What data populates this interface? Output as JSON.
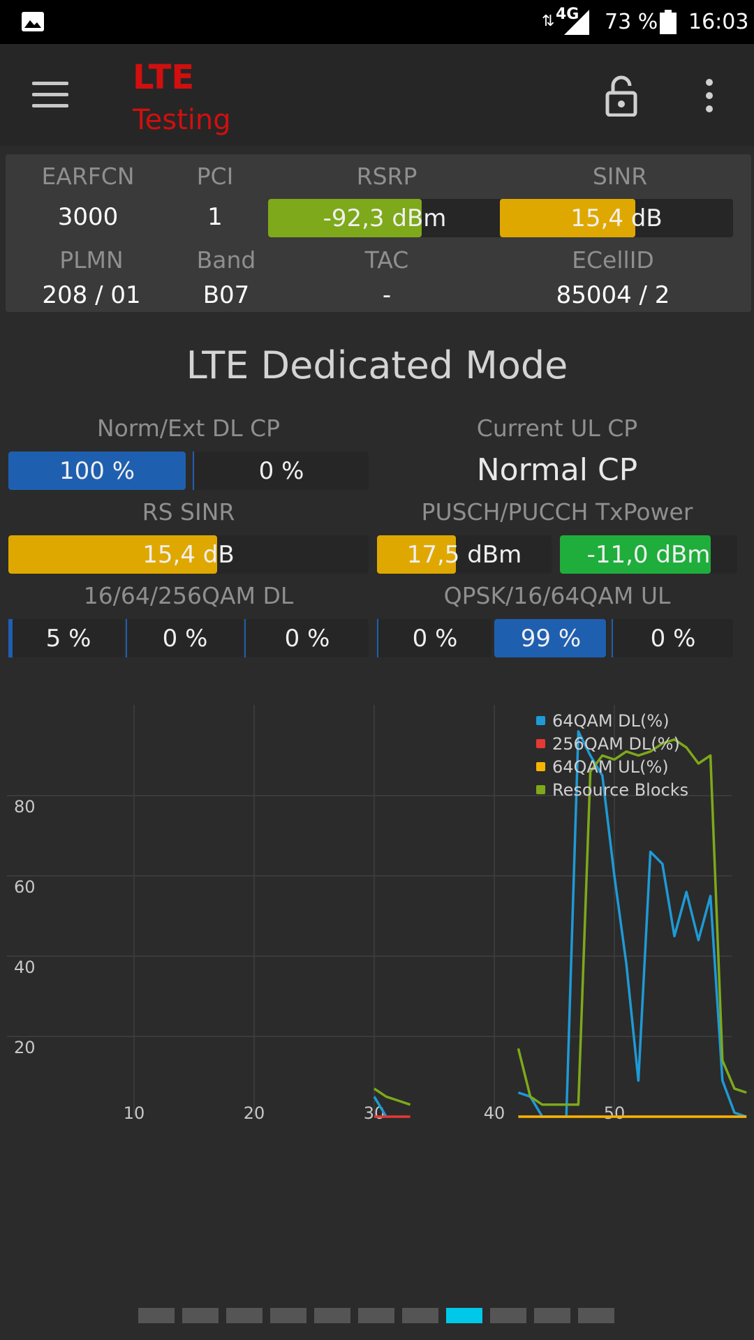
{
  "status_bar": {
    "network": "4G",
    "battery": "73 %",
    "time": "16:03",
    "icons": [
      "image-icon",
      "data-arrows-icon",
      "signal-icon",
      "battery-icon"
    ]
  },
  "app_bar": {
    "title_line1": "LTE",
    "title_line2": "Testing",
    "icons": [
      "menu-icon",
      "lock-icon",
      "more-vert-icon"
    ]
  },
  "cell_info": {
    "earfcn_label": "EARFCN",
    "earfcn": "3000",
    "pci_label": "PCI",
    "pci": "1",
    "rsrp_label": "RSRP",
    "rsrp": "-92,3 dBm",
    "rsrp_fill": 0.66,
    "sinr_label": "SINR",
    "sinr": "15,4 dB",
    "sinr_fill": 0.58,
    "plmn_label": "PLMN",
    "plmn": "208 / 01",
    "band_label": "Band",
    "band": "B07",
    "tac_label": "TAC",
    "tac": "-",
    "ecellid_label": "ECellID",
    "ecellid": "85004 / 2"
  },
  "dedicated": {
    "title": "LTE Dedicated Mode",
    "dl_cp_label": "Norm/Ext DL CP",
    "dl_cp_norm": "100 %",
    "dl_cp_ext": "0 %",
    "ul_cp_label": "Current UL CP",
    "ul_cp_value": "Normal CP",
    "rs_sinr_label": "RS SINR",
    "rs_sinr": "15,4 dB",
    "rs_sinr_fill": 0.58,
    "txpower_label": "PUSCH/PUCCH TxPower",
    "pusch_power": "17,5 dBm",
    "pusch_fill": 0.45,
    "pucch_power": "-11,0 dBm",
    "pucch_fill": 0.85,
    "qam_dl_label": "16/64/256QAM DL",
    "qam_dl": [
      "5 %",
      "0 %",
      "0 %"
    ],
    "qam_ul_label": "QPSK/16/64QAM UL",
    "qam_ul": [
      "0 %",
      "99 %",
      "0 %"
    ]
  },
  "colors": {
    "blue": "#1f5fb0",
    "green": "#7ea91a",
    "amber": "#dfa800",
    "bright_green": "#1fad3c",
    "title_red": "#d10f0f",
    "pager_active": "#00c8e8"
  },
  "chart_data": {
    "type": "line",
    "xlim": [
      0,
      61
    ],
    "ylim": [
      0,
      100
    ],
    "x_ticks": [
      "10",
      "20",
      "30",
      "40",
      "50"
    ],
    "y_ticks": [
      "20",
      "40",
      "60",
      "80"
    ],
    "grid": true,
    "legend_position": "top-right",
    "series": [
      {
        "name": "64QAM DL(%)",
        "color": "#1e9ad6",
        "segments": [
          [
            [
              30,
              5
            ],
            [
              31,
              0
            ]
          ],
          [
            [
              42,
              6
            ],
            [
              43,
              5
            ],
            [
              44,
              0
            ],
            [
              45,
              0
            ],
            [
              46,
              0
            ],
            [
              47,
              96
            ],
            [
              48,
              90
            ],
            [
              49,
              85
            ],
            [
              50,
              60
            ],
            [
              51,
              38
            ],
            [
              52,
              9
            ],
            [
              53,
              66
            ],
            [
              54,
              63
            ],
            [
              55,
              45
            ],
            [
              56,
              56
            ],
            [
              57,
              44
            ],
            [
              58,
              55
            ],
            [
              59,
              9
            ],
            [
              60,
              1
            ],
            [
              61,
              0
            ]
          ]
        ]
      },
      {
        "name": "256QAM DL(%)",
        "color": "#e53935",
        "segments": [
          [
            [
              30,
              0
            ],
            [
              33,
              0
            ]
          ],
          [
            [
              42,
              0
            ],
            [
              61,
              0
            ]
          ]
        ]
      },
      {
        "name": "64QAM UL(%)",
        "color": "#f4b400",
        "segments": [
          [
            [
              42,
              0
            ],
            [
              61,
              0
            ]
          ]
        ]
      },
      {
        "name": "Resource Blocks",
        "color": "#7ea91a",
        "segments": [
          [
            [
              30,
              7
            ],
            [
              31,
              5
            ],
            [
              32,
              4
            ],
            [
              33,
              3
            ]
          ],
          [
            [
              42,
              17
            ],
            [
              43,
              5
            ],
            [
              44,
              3
            ],
            [
              45,
              3
            ],
            [
              46,
              3
            ],
            [
              47,
              3
            ],
            [
              48,
              86
            ],
            [
              49,
              90
            ],
            [
              50,
              89
            ],
            [
              51,
              91
            ],
            [
              52,
              90
            ],
            [
              53,
              91
            ],
            [
              54,
              93
            ],
            [
              55,
              94
            ],
            [
              56,
              92
            ],
            [
              57,
              88
            ],
            [
              58,
              90
            ],
            [
              59,
              14
            ],
            [
              60,
              7
            ],
            [
              61,
              6
            ]
          ]
        ]
      }
    ]
  },
  "pager": {
    "count": 11,
    "active_index": 7
  }
}
